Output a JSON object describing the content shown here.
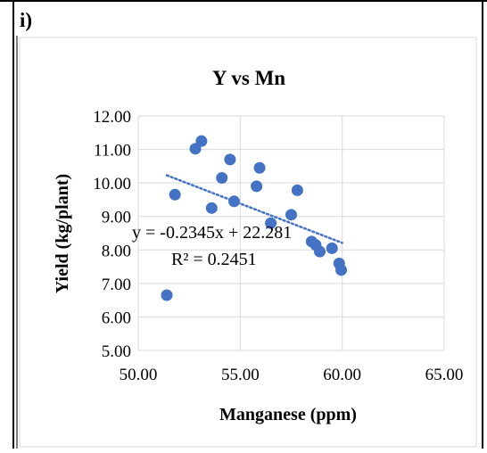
{
  "panel_label": "i)",
  "chart_data": {
    "type": "scatter",
    "title": "Y vs Mn",
    "xlabel": "Manganese (ppm)",
    "ylabel": "Yield (kg/plant)",
    "xlim": [
      50,
      65
    ],
    "ylim": [
      5,
      12
    ],
    "x_ticks": [
      "50.00",
      "55.00",
      "60.00",
      "65.00"
    ],
    "y_ticks": [
      "5.00",
      "6.00",
      "7.00",
      "8.00",
      "9.00",
      "10.00",
      "11.00",
      "12.00"
    ],
    "grid": true,
    "marker_color": "#4472C4",
    "points": [
      {
        "x": 51.4,
        "y": 6.65
      },
      {
        "x": 51.8,
        "y": 9.65
      },
      {
        "x": 52.8,
        "y": 11.02
      },
      {
        "x": 53.1,
        "y": 11.25
      },
      {
        "x": 53.6,
        "y": 9.25
      },
      {
        "x": 54.1,
        "y": 10.15
      },
      {
        "x": 54.5,
        "y": 10.7
      },
      {
        "x": 54.7,
        "y": 9.45
      },
      {
        "x": 55.8,
        "y": 9.9
      },
      {
        "x": 55.95,
        "y": 10.45
      },
      {
        "x": 56.5,
        "y": 8.8
      },
      {
        "x": 57.5,
        "y": 9.05
      },
      {
        "x": 57.8,
        "y": 9.78
      },
      {
        "x": 58.5,
        "y": 8.25
      },
      {
        "x": 58.7,
        "y": 8.15
      },
      {
        "x": 58.9,
        "y": 7.95
      },
      {
        "x": 59.5,
        "y": 8.05
      },
      {
        "x": 59.85,
        "y": 7.6
      },
      {
        "x": 59.95,
        "y": 7.4
      }
    ],
    "trendline": {
      "type": "linear",
      "slope": -0.2345,
      "intercept": 22.281,
      "x_range": [
        51.4,
        60.0
      ],
      "color": "#4472C4",
      "style": "dotted",
      "equation": "y = -0.2345x + 22.281",
      "r_squared": "R² = 0.2451"
    }
  }
}
